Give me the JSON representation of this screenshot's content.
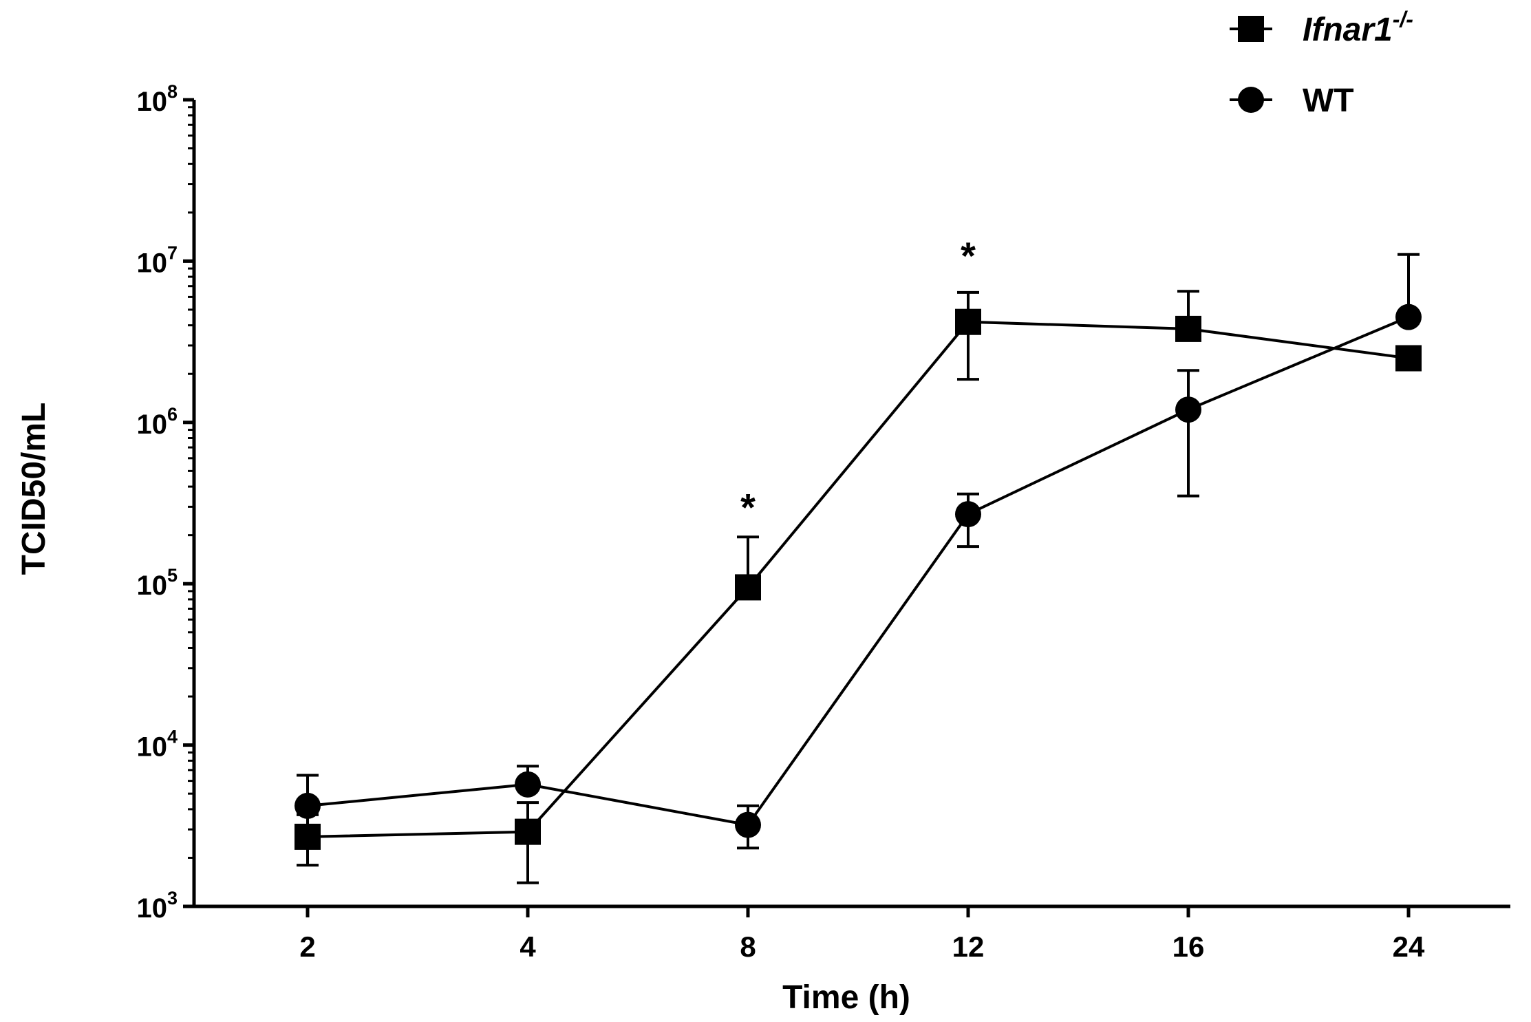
{
  "chart_data": {
    "type": "line",
    "title": "",
    "xlabel": "Time (h)",
    "ylabel": "TCID50/mL",
    "yscale": "log",
    "ylim": [
      1000,
      100000000
    ],
    "categories": [
      "2",
      "4",
      "8",
      "12",
      "16",
      "24"
    ],
    "y_ticks": [
      {
        "base": "10",
        "exp": "3"
      },
      {
        "base": "10",
        "exp": "4"
      },
      {
        "base": "10",
        "exp": "5"
      },
      {
        "base": "10",
        "exp": "6"
      },
      {
        "base": "10",
        "exp": "7"
      },
      {
        "base": "10",
        "exp": "8"
      }
    ],
    "series": [
      {
        "name": "Ifnar1",
        "superscript": "-/-",
        "marker": "square",
        "values": [
          2700,
          2900,
          95000,
          4200000,
          3800000,
          2500000
        ],
        "err_upper": [
          3700,
          4400,
          195000,
          6400000,
          6500000,
          2500000
        ],
        "err_lower": [
          1800,
          1400,
          95000,
          1850000,
          3800000,
          2500000
        ]
      },
      {
        "name": "WT",
        "superscript": "",
        "marker": "circle",
        "values": [
          4200,
          5700,
          3200,
          270000,
          1200000,
          4500000
        ],
        "err_upper": [
          6500,
          7400,
          4200,
          360000,
          2100000,
          11000000
        ],
        "err_lower": [
          4200,
          5700,
          2300,
          170000,
          350000,
          4500000
        ]
      }
    ],
    "annotations": [
      {
        "text": "*",
        "category": "8",
        "y": 330000
      },
      {
        "text": "*",
        "category": "12",
        "y": 12000000
      }
    ],
    "legend_position": "top-right"
  }
}
